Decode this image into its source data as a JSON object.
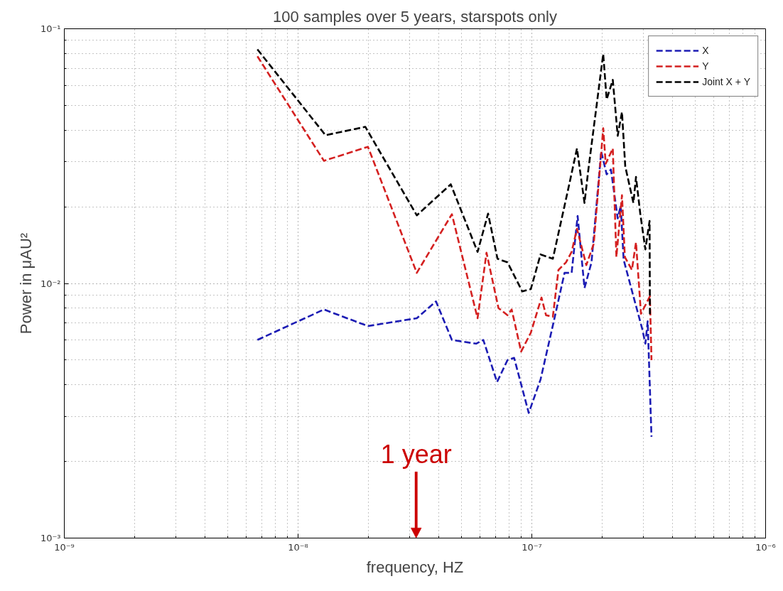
{
  "chart_data": {
    "type": "line",
    "title": "100 samples over 5 years, starspots only",
    "xlabel": "frequency, HZ",
    "ylabel": "Power in μAU²",
    "log": "xy",
    "grid": true,
    "legend": "top right",
    "line_style": "dashed",
    "xlim": [
      1e-09,
      1e-06
    ],
    "ylim": [
      0.001,
      0.1
    ],
    "xticks": [
      {
        "value": 1e-09,
        "label": "10⁻⁹"
      },
      {
        "value": 1e-08,
        "label": "10⁻⁸"
      },
      {
        "value": 1e-07,
        "label": "10⁻⁷"
      },
      {
        "value": 1e-06,
        "label": "10⁻⁶"
      }
    ],
    "yticks": [
      {
        "value": 0.001,
        "label": "10⁻³"
      },
      {
        "value": 0.01,
        "label": "10⁻²"
      },
      {
        "value": 0.1,
        "label": "10⁻¹"
      }
    ],
    "ref_lines": [
      {
        "axis": "x",
        "value": 3.2e-08,
        "label": "1 year",
        "color": "#cc0000"
      }
    ],
    "series": [
      {
        "name": "X",
        "color": "#1c1cb4",
        "x": [
          6.7e-09,
          1.29e-08,
          1.99e-08,
          3.22e-08,
          3.89e-08,
          4.55e-08,
          5.78e-08,
          6.2e-08,
          7.1e-08,
          7.87e-08,
          8.4e-08,
          9.7e-08,
          1.09e-07,
          1.25e-07,
          1.38e-07,
          1.48e-07,
          1.57e-07,
          1.68e-07,
          1.8e-07,
          1.98e-07,
          2.09e-07,
          2.18e-07,
          2.33e-07,
          2.4e-07,
          2.47e-07,
          2.72e-07,
          2.97e-07,
          3.06e-07,
          3.13e-07,
          3.25e-07
        ],
        "values": [
          0.006,
          0.0079,
          0.0068,
          0.0073,
          0.0085,
          0.006,
          0.0058,
          0.006,
          0.0041,
          0.005,
          0.0051,
          0.0031,
          0.0042,
          0.0073,
          0.011,
          0.011,
          0.0184,
          0.0096,
          0.0121,
          0.033,
          0.0268,
          0.028,
          0.018,
          0.0202,
          0.0124,
          0.0089,
          0.0066,
          0.0058,
          0.0071,
          0.0025
        ]
      },
      {
        "name": "Y",
        "color": "#d42020",
        "x": [
          6.7e-09,
          1.29e-08,
          1.99e-08,
          3.22e-08,
          4.55e-08,
          5.86e-08,
          6.4e-08,
          7.2e-08,
          7.87e-08,
          8.2e-08,
          9e-08,
          9.9e-08,
          1.1e-07,
          1.15e-07,
          1.23e-07,
          1.3e-07,
          1.4e-07,
          1.48e-07,
          1.56e-07,
          1.71e-07,
          1.84e-07,
          2.02e-07,
          2.07e-07,
          2.22e-07,
          2.3e-07,
          2.43e-07,
          2.5e-07,
          2.68e-07,
          2.79e-07,
          2.93e-07,
          3.2e-07,
          3.25e-07
        ],
        "values": [
          0.078,
          0.0303,
          0.0344,
          0.011,
          0.0187,
          0.0073,
          0.0132,
          0.008,
          0.0075,
          0.0079,
          0.0054,
          0.0064,
          0.0088,
          0.0075,
          0.0074,
          0.0113,
          0.0121,
          0.0133,
          0.0164,
          0.0118,
          0.0143,
          0.0407,
          0.0295,
          0.0339,
          0.0127,
          0.0222,
          0.0127,
          0.0113,
          0.0145,
          0.0076,
          0.0089,
          0.005
        ]
      },
      {
        "name": "Joint X + Y",
        "color": "#000000",
        "x": [
          6.7e-09,
          1.31e-08,
          1.94e-08,
          3.22e-08,
          4.5e-08,
          5.86e-08,
          6.5e-08,
          7.13e-08,
          7.87e-08,
          9.1e-08,
          9.9e-08,
          1.09e-07,
          1.23e-07,
          1.44e-07,
          1.56e-07,
          1.68e-07,
          1.74e-07,
          2.02e-07,
          2.09e-07,
          2.22e-07,
          2.33e-07,
          2.43e-07,
          2.51e-07,
          2.72e-07,
          2.79e-07,
          2.91e-07,
          3.06e-07,
          3.19e-07,
          3.2e-07
        ],
        "values": [
          0.083,
          0.0382,
          0.0412,
          0.0185,
          0.0245,
          0.0133,
          0.0188,
          0.0125,
          0.0121,
          0.0093,
          0.0095,
          0.013,
          0.0125,
          0.0241,
          0.0339,
          0.0207,
          0.0274,
          0.0796,
          0.0528,
          0.063,
          0.038,
          0.0471,
          0.0288,
          0.0207,
          0.0262,
          0.0188,
          0.0136,
          0.0176,
          0.0074
        ]
      }
    ]
  }
}
